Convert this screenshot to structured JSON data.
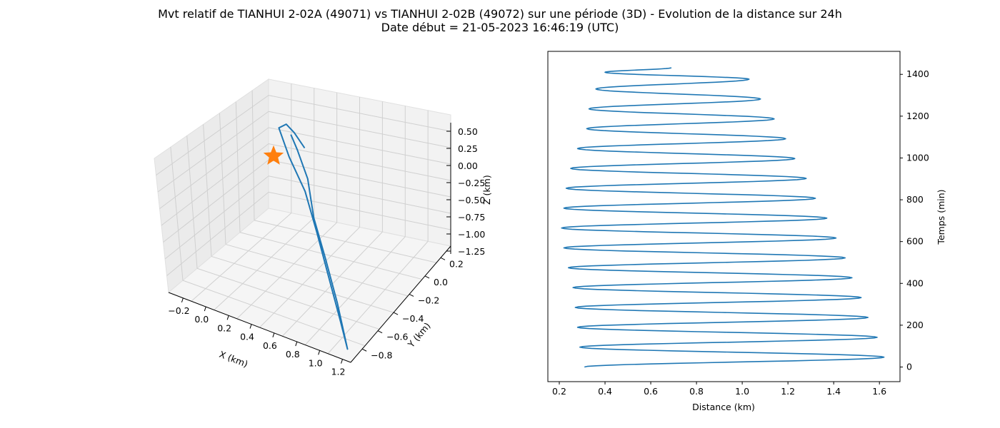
{
  "title_line1": "Mvt relatif de TIANHUI 2-02A (49071) vs TIANHUI 2-02B (49072) sur une période (3D) - Evolution de la distance sur 24h",
  "title_line2": "Date début = 21-05-2023 16:46:19 (UTC)",
  "colors": {
    "series": "#1f77b4",
    "marker": "#ff7f0e",
    "pane": "#f2f2f2",
    "grid": "#cccccc"
  },
  "chart_data": [
    {
      "type": "line",
      "projection": "3d",
      "xlabel": "X (km)",
      "ylabel": "Y (km)",
      "zlabel": "Z (km)",
      "xticks": [
        "−0.2",
        "0.0",
        "0.2",
        "0.4",
        "0.6",
        "0.8",
        "1.0",
        "1.2"
      ],
      "yticks": [
        "0.2",
        "0.0",
        "−0.2",
        "−0.4",
        "−0.6",
        "−0.8"
      ],
      "zticks": [
        "0.50",
        "0.25",
        "0.00",
        "−0.25",
        "−0.50",
        "−0.75",
        "−1.00",
        "−1.25"
      ],
      "xlim": [
        -0.3,
        1.3
      ],
      "ylim": [
        -0.85,
        0.35
      ],
      "zlim": [
        -1.3,
        0.55
      ],
      "grid": true,
      "marker": {
        "shape": "star",
        "x": 0,
        "y": 0,
        "z": 0
      },
      "trajectory": {
        "x": [
          0.2,
          0.05,
          -0.05,
          -0.1,
          0.1,
          0.35,
          0.6,
          0.85,
          1.1,
          1.25,
          1.0,
          0.75,
          0.5,
          0.3,
          0.12,
          0.02
        ],
        "y": [
          0.1,
          0.18,
          0.22,
          0.2,
          0.05,
          -0.1,
          -0.3,
          -0.5,
          -0.7,
          -0.82,
          -0.6,
          -0.4,
          -0.2,
          0.0,
          0.12,
          0.18
        ],
        "z": [
          0.15,
          0.2,
          0.22,
          0.15,
          0.0,
          -0.2,
          -0.45,
          -0.75,
          -1.05,
          -1.25,
          -0.95,
          -0.65,
          -0.4,
          -0.15,
          0.05,
          0.15
        ]
      }
    },
    {
      "type": "line",
      "xlabel": "Distance (km)",
      "ylabel": "Temps (min)",
      "xlim": [
        0.15,
        1.69
      ],
      "ylim": [
        -70,
        1510
      ],
      "xticks": [
        0.2,
        0.4,
        0.6,
        0.8,
        1.0,
        1.2,
        1.4,
        1.6
      ],
      "yticks": [
        0,
        200,
        400,
        600,
        800,
        1000,
        1200,
        1400
      ],
      "ytick_side": "right",
      "grid": false,
      "series_distance": {
        "min_times": [
          0,
          95,
          190,
          285,
          380,
          475,
          570,
          665,
          760,
          855,
          950,
          1045,
          1140,
          1235,
          1330,
          1410
        ],
        "min_values": [
          0.31,
          0.29,
          0.28,
          0.27,
          0.26,
          0.24,
          0.22,
          0.21,
          0.22,
          0.23,
          0.25,
          0.28,
          0.32,
          0.33,
          0.36,
          0.4
        ],
        "max_times": [
          47,
          142,
          237,
          332,
          427,
          522,
          617,
          712,
          807,
          902,
          997,
          1092,
          1187,
          1282,
          1377,
          1432
        ],
        "max_values": [
          1.62,
          1.59,
          1.55,
          1.52,
          1.48,
          1.45,
          1.41,
          1.37,
          1.32,
          1.28,
          1.23,
          1.19,
          1.14,
          1.08,
          1.03,
          0.69
        ]
      }
    }
  ]
}
